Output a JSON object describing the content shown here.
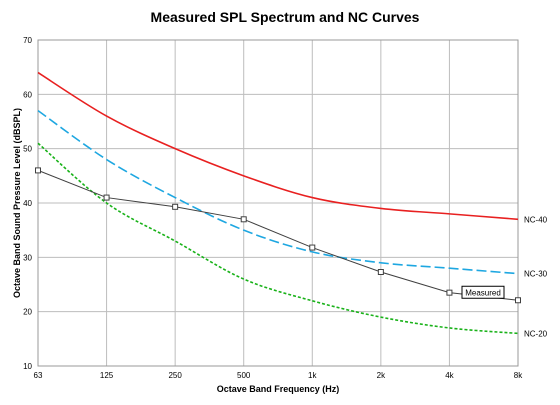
{
  "chart_data": {
    "type": "line",
    "title": "Measured SPL Spectrum and NC Curves",
    "xlabel": "Octave Band Frequency (Hz)",
    "ylabel": "Octave Band Sound Pressure Level (dBSPL)",
    "categories": [
      "63",
      "125",
      "250",
      "500",
      "1k",
      "2k",
      "4k",
      "8k"
    ],
    "ylim": [
      10,
      70
    ],
    "yticks": [
      10,
      20,
      30,
      40,
      50,
      60,
      70
    ],
    "grid": true,
    "series": [
      {
        "name": "NC-40",
        "values": [
          64,
          56,
          50,
          45,
          41,
          39,
          38,
          37
        ],
        "color": "#e82020",
        "style": "solid",
        "markers": false
      },
      {
        "name": "NC-30",
        "values": [
          57,
          48,
          41,
          35,
          31,
          29,
          28,
          27
        ],
        "color": "#1ea7e1",
        "style": "dashed",
        "markers": false
      },
      {
        "name": "NC-20",
        "values": [
          51,
          40,
          33,
          26,
          22,
          19,
          17,
          16
        ],
        "color": "#19b219",
        "style": "dotted",
        "markers": false
      },
      {
        "name": "Measured",
        "values": [
          46,
          41,
          39.3,
          37,
          31.8,
          27.3,
          23.5,
          22.1
        ],
        "color": "#404040",
        "style": "solid",
        "markers": true
      }
    ]
  }
}
